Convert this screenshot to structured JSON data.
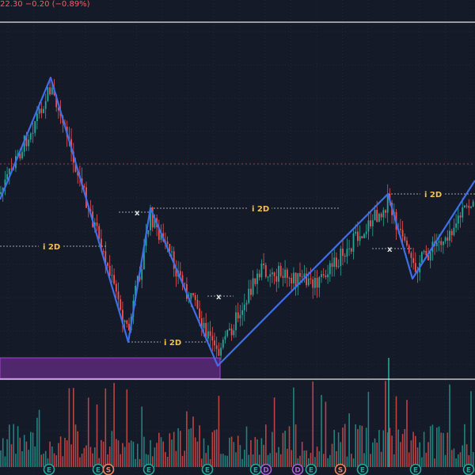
{
  "header": {
    "price_change": "22.30  −0.20 (−0.89%)"
  },
  "colors": {
    "background": "#151a28",
    "up": "#26a69a",
    "down": "#ef5350",
    "zigzag": "#3e6fe8",
    "pivot_label": "#f2c14e",
    "zone_fill": "#5b2a78",
    "zone_border": "#a640d6",
    "separator": "#e6e6e6",
    "current_price_line": "#c84a4a"
  },
  "pivot_labels": {
    "label_a": "i 2D",
    "label_b": "i 2D",
    "label_c": "i 2D",
    "label_d": "i 2D",
    "cross_a": "x",
    "cross_b": "x",
    "cross_c": "x"
  },
  "events": [
    {
      "letter": "E",
      "color": "#26a69a"
    },
    {
      "letter": "E",
      "color": "#26a69a"
    },
    {
      "letter": "S",
      "color": "#f0875a"
    },
    {
      "letter": "E",
      "color": "#26a69a"
    },
    {
      "letter": "E",
      "color": "#26a69a"
    },
    {
      "letter": "E",
      "color": "#26a69a"
    },
    {
      "letter": "D",
      "color": "#b05bd6"
    },
    {
      "letter": "D",
      "color": "#b05bd6"
    },
    {
      "letter": "E",
      "color": "#26a69a"
    },
    {
      "letter": "S",
      "color": "#f0875a"
    },
    {
      "letter": "E",
      "color": "#26a69a"
    },
    {
      "letter": "E",
      "color": "#26a69a"
    },
    {
      "letter": "E",
      "color": "#26a69a"
    }
  ]
}
